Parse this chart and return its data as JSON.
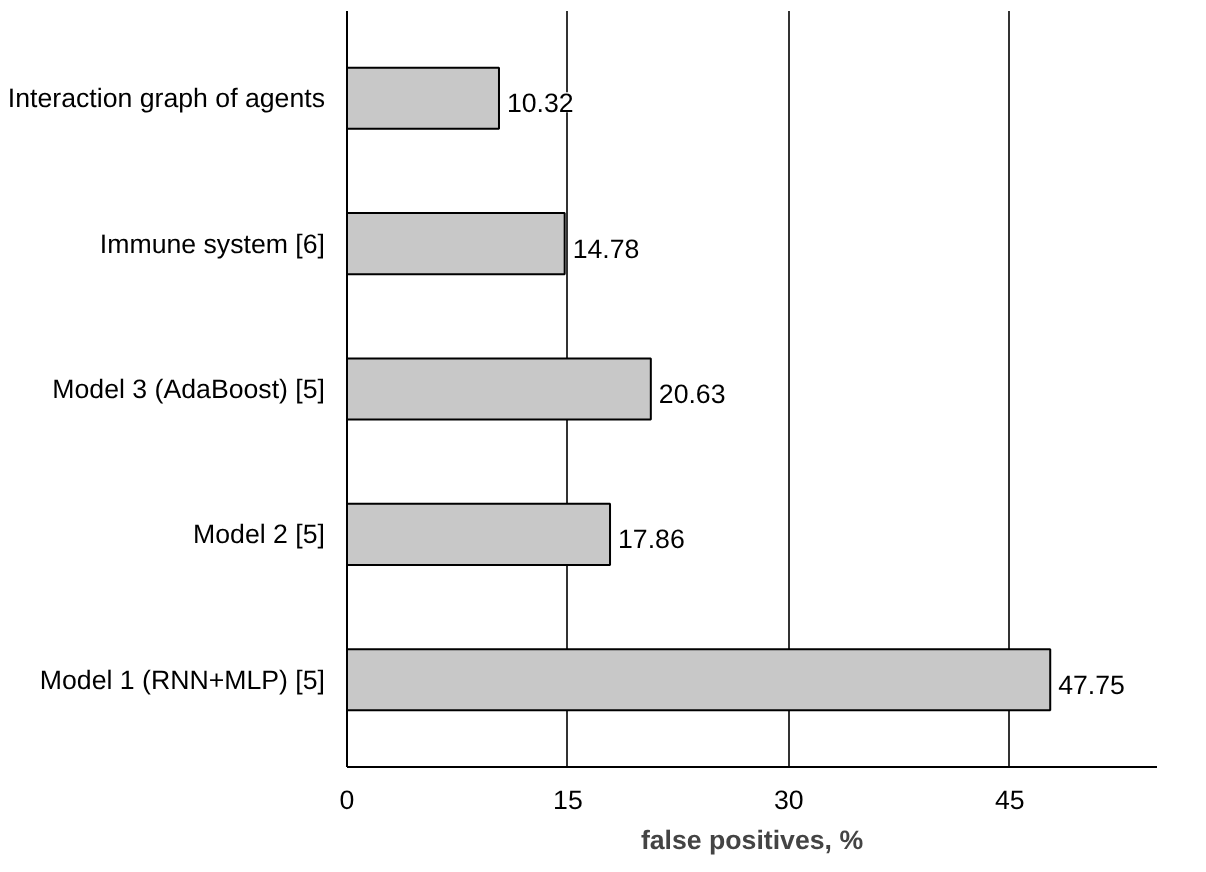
{
  "chart_data": {
    "type": "bar",
    "orientation": "horizontal",
    "xlabel": "false positives, %",
    "categories": [
      "Interaction graph of agents",
      "Immune system [6]",
      "Model 3 (AdaBoost) [5]",
      "Model 2 [5]",
      "Model 1 (RNN+MLP) [5]"
    ],
    "values": [
      10.32,
      14.78,
      20.63,
      17.86,
      47.75
    ],
    "color": "#c8c8c8",
    "xlim": [
      0,
      55
    ],
    "xticks": [
      0,
      15,
      30,
      45
    ],
    "grid": "x",
    "data_labels": true
  }
}
